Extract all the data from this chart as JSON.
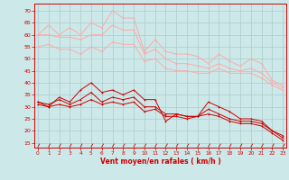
{
  "x": [
    0,
    1,
    2,
    3,
    4,
    5,
    6,
    7,
    8,
    9,
    10,
    11,
    12,
    13,
    14,
    15,
    16,
    17,
    18,
    19,
    20,
    21,
    22,
    23
  ],
  "background_color": "#cce8e8",
  "grid_color": "#aacccc",
  "xlabel": "Vent moyen/en rafales ( km/h )",
  "xlabel_color": "#cc0000",
  "tick_color": "#cc0000",
  "series_light": [
    [
      60,
      64,
      60,
      63,
      60,
      65,
      63,
      70,
      67,
      67,
      53,
      58,
      53,
      52,
      52,
      51,
      48,
      52,
      49,
      47,
      50,
      48,
      41,
      39
    ],
    [
      60,
      60,
      59,
      59,
      58,
      60,
      60,
      64,
      62,
      62,
      52,
      54,
      50,
      48,
      48,
      47,
      46,
      48,
      46,
      45,
      46,
      44,
      40,
      38
    ],
    [
      55,
      56,
      54,
      54,
      52,
      55,
      53,
      57,
      56,
      56,
      49,
      50,
      46,
      45,
      45,
      44,
      44,
      46,
      44,
      44,
      44,
      42,
      39,
      37
    ]
  ],
  "series_dark": [
    [
      32,
      30,
      34,
      32,
      37,
      40,
      36,
      37,
      35,
      37,
      33,
      33,
      24,
      27,
      26,
      26,
      32,
      30,
      28,
      25,
      25,
      24,
      20,
      17
    ],
    [
      32,
      31,
      33,
      31,
      33,
      36,
      32,
      34,
      33,
      34,
      30,
      30,
      27,
      27,
      26,
      26,
      29,
      27,
      25,
      24,
      24,
      23,
      20,
      18
    ],
    [
      31,
      30,
      31,
      30,
      31,
      33,
      31,
      32,
      31,
      32,
      28,
      29,
      26,
      26,
      25,
      26,
      27,
      26,
      24,
      23,
      23,
      22,
      19,
      16
    ]
  ],
  "yticks": [
    15,
    20,
    25,
    30,
    35,
    40,
    45,
    50,
    55,
    60,
    65,
    70
  ],
  "ylim": [
    13,
    73
  ],
  "xlim": [
    -0.3,
    23.3
  ]
}
